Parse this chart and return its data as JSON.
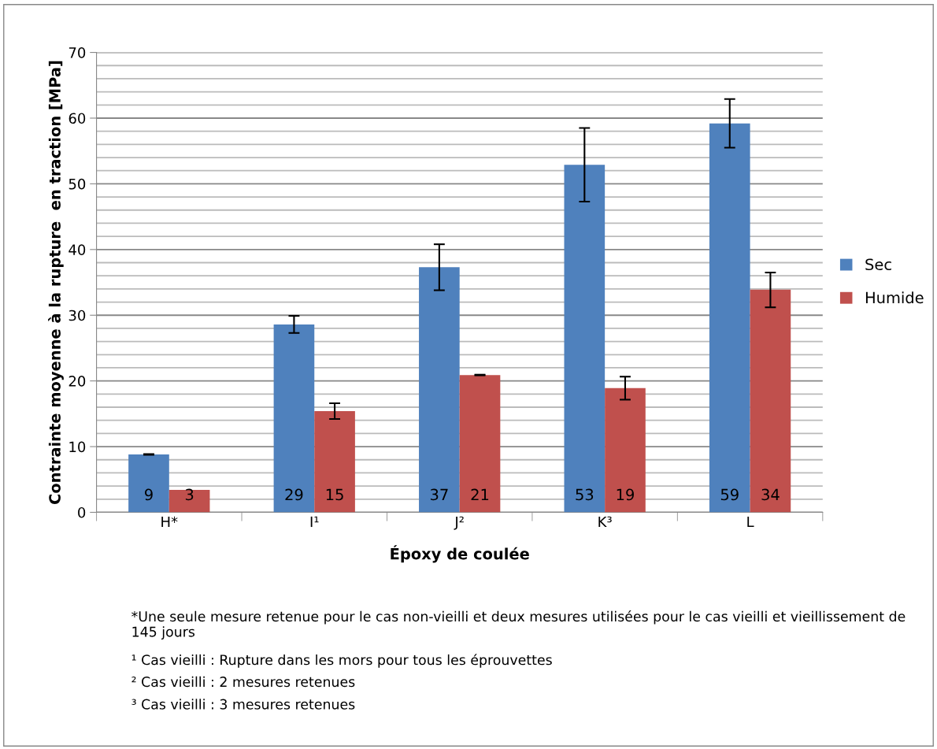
{
  "chart_data": {
    "type": "bar",
    "xlabel": "Époxy de coulée",
    "ylabel": "Contrainte moyenne à la rupture  en traction [MPa]",
    "categories": [
      "H*",
      "I¹",
      "J²",
      "K³",
      "L"
    ],
    "series": [
      {
        "name": "Sec",
        "color": "#4f81bd",
        "values": [
          8.8,
          28.6,
          37.3,
          52.9,
          59.2
        ],
        "errors": [
          0.05,
          1.3,
          3.5,
          5.6,
          3.7
        ],
        "value_labels": [
          "9",
          "29",
          "37",
          "53",
          "59"
        ]
      },
      {
        "name": "Humide",
        "color": "#c0504d",
        "values": [
          3.4,
          15.4,
          20.9,
          18.9,
          33.9
        ],
        "errors": [
          null,
          1.2,
          0.05,
          1.75,
          [
            31.2,
            36.5
          ]
        ],
        "value_labels": [
          "3",
          "15",
          "21",
          "19",
          "34"
        ]
      }
    ],
    "ylim": [
      0,
      70
    ],
    "yticks": [
      0,
      {
        "value": 2,
        "label": null
      },
      {
        "value": 4,
        "label": null
      },
      {
        "value": 6,
        "label": null
      },
      {
        "value": 8,
        "label": null
      },
      10,
      {
        "value": 12,
        "label": null
      },
      {
        "value": 14,
        "label": null
      },
      {
        "value": 16,
        "label": null
      },
      {
        "value": 18,
        "label": null
      },
      20,
      {
        "value": 22,
        "label": null
      },
      {
        "value": 24,
        "label": null
      },
      {
        "value": 26,
        "label": null
      },
      {
        "value": 28,
        "label": null
      },
      30,
      {
        "value": 32,
        "label": null
      },
      {
        "value": 34,
        "label": null
      },
      {
        "value": 36,
        "label": null
      },
      {
        "value": 38,
        "label": null
      },
      40,
      {
        "value": 42,
        "label": null
      },
      {
        "value": 44,
        "label": null
      },
      {
        "value": 46,
        "label": null
      },
      {
        "value": 48,
        "label": null
      },
      50,
      {
        "value": 52,
        "label": null
      },
      {
        "value": 54,
        "label": null
      },
      {
        "value": 56,
        "label": null
      },
      {
        "value": 58,
        "label": null
      },
      60,
      {
        "value": 62,
        "label": null
      },
      {
        "value": 64,
        "label": null
      },
      {
        "value": 66,
        "label": null
      },
      {
        "value": 68,
        "label": null
      },
      70
    ],
    "grid": "y",
    "legend": "right",
    "annotations": [
      "*Une seule mesure retenue pour le cas non-vieilli et deux mesures utilisées pour le cas vieilli et vieillissement de 145 jours",
      "¹ Cas vieilli : Rupture dans les mors pour tous les éprouvettes",
      "² Cas vieilli : 2 mesures retenues",
      "³ Cas vieilli : 3 mesures retenues"
    ]
  }
}
